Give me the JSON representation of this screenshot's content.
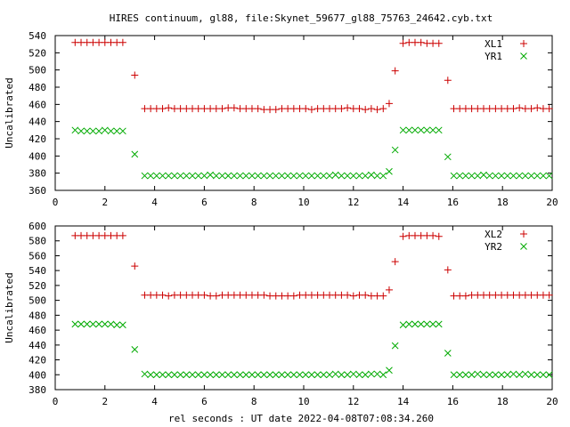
{
  "title": "HIRES continuum, gl88, file:Skynet_59677_gl88_75763_24642.cyb.txt",
  "xlabel": "rel seconds : UT date 2022-04-08T07:08:34.260",
  "colors": {
    "red": "#cc0000",
    "green": "#00aa00",
    "axis": "#000000"
  },
  "chart_data": [
    {
      "type": "scatter",
      "ylabel": "Uncalibrated",
      "xlim": [
        0,
        20
      ],
      "ylim": [
        360,
        540
      ],
      "xticks": [
        0,
        2,
        4,
        6,
        8,
        10,
        12,
        14,
        16,
        18,
        20
      ],
      "yticks": [
        360,
        380,
        400,
        420,
        440,
        460,
        480,
        500,
        520,
        540
      ],
      "grid": false,
      "legend_position": "top-right",
      "series": [
        {
          "name": "XL1",
          "marker": "plus",
          "color": "#cc0000",
          "x": [
            0.8,
            1.04,
            1.28,
            1.52,
            1.76,
            2.0,
            2.24,
            2.48,
            2.72,
            3.2,
            3.6,
            3.84,
            4.08,
            4.32,
            4.56,
            4.8,
            5.04,
            5.28,
            5.52,
            5.76,
            6.0,
            6.24,
            6.48,
            6.72,
            6.96,
            7.2,
            7.44,
            7.68,
            7.92,
            8.16,
            8.4,
            8.64,
            8.88,
            9.12,
            9.36,
            9.6,
            9.84,
            10.08,
            10.32,
            10.56,
            10.8,
            11.04,
            11.28,
            11.52,
            11.76,
            12.0,
            12.24,
            12.48,
            12.72,
            12.96,
            13.2,
            13.44,
            13.68,
            14.0,
            14.24,
            14.48,
            14.72,
            14.96,
            15.2,
            15.44,
            15.8,
            16.04,
            16.28,
            16.52,
            16.76,
            17.0,
            17.24,
            17.48,
            17.72,
            17.96,
            18.2,
            18.44,
            18.68,
            18.92,
            19.16,
            19.4,
            19.64,
            19.88
          ],
          "y": [
            532,
            532,
            532,
            532,
            532,
            532,
            532,
            532,
            532,
            494,
            455,
            455,
            455,
            455,
            456,
            455,
            455,
            455,
            455,
            455,
            455,
            455,
            455,
            455,
            456,
            456,
            455,
            455,
            455,
            455,
            454,
            454,
            454,
            455,
            455,
            455,
            455,
            455,
            454,
            455,
            455,
            455,
            455,
            455,
            456,
            455,
            455,
            454,
            455,
            454,
            455,
            461,
            499,
            531,
            532,
            532,
            532,
            531,
            531,
            531,
            488,
            455,
            455,
            455,
            455,
            455,
            455,
            455,
            455,
            455,
            455,
            455,
            456,
            455,
            455,
            456,
            455,
            455
          ]
        },
        {
          "name": "YR1",
          "marker": "cross",
          "color": "#00aa00",
          "x": [
            0.8,
            1.04,
            1.28,
            1.52,
            1.76,
            2.0,
            2.24,
            2.48,
            2.72,
            3.2,
            3.6,
            3.84,
            4.08,
            4.32,
            4.56,
            4.8,
            5.04,
            5.28,
            5.52,
            5.76,
            6.0,
            6.24,
            6.48,
            6.72,
            6.96,
            7.2,
            7.44,
            7.68,
            7.92,
            8.16,
            8.4,
            8.64,
            8.88,
            9.12,
            9.36,
            9.6,
            9.84,
            10.08,
            10.32,
            10.56,
            10.8,
            11.04,
            11.28,
            11.52,
            11.76,
            12.0,
            12.24,
            12.48,
            12.72,
            12.96,
            13.2,
            13.44,
            13.68,
            14.0,
            14.24,
            14.48,
            14.72,
            14.96,
            15.2,
            15.44,
            15.8,
            16.04,
            16.28,
            16.52,
            16.76,
            17.0,
            17.24,
            17.48,
            17.72,
            17.96,
            18.2,
            18.44,
            18.68,
            18.92,
            19.16,
            19.4,
            19.64,
            19.88
          ],
          "y": [
            430,
            429,
            429,
            429,
            429,
            430,
            429,
            429,
            429,
            402,
            377,
            377,
            377,
            377,
            377,
            377,
            377,
            377,
            377,
            377,
            377,
            378,
            377,
            377,
            377,
            377,
            377,
            377,
            377,
            377,
            377,
            377,
            377,
            377,
            377,
            377,
            377,
            377,
            377,
            377,
            377,
            377,
            378,
            377,
            377,
            377,
            377,
            377,
            378,
            377,
            377,
            382,
            407,
            430,
            430,
            430,
            430,
            430,
            430,
            430,
            399,
            377,
            377,
            377,
            377,
            377,
            378,
            377,
            377,
            377,
            377,
            377,
            377,
            377,
            377,
            377,
            377,
            377
          ]
        }
      ]
    },
    {
      "type": "scatter",
      "ylabel": "Uncalibrated",
      "xlim": [
        0,
        20
      ],
      "ylim": [
        380,
        600
      ],
      "xticks": [
        0,
        2,
        4,
        6,
        8,
        10,
        12,
        14,
        16,
        18,
        20
      ],
      "yticks": [
        380,
        400,
        420,
        440,
        460,
        480,
        500,
        520,
        540,
        560,
        580,
        600
      ],
      "grid": false,
      "legend_position": "top-right",
      "series": [
        {
          "name": "XL2",
          "marker": "plus",
          "color": "#cc0000",
          "x": [
            0.8,
            1.04,
            1.28,
            1.52,
            1.76,
            2.0,
            2.24,
            2.48,
            2.72,
            3.2,
            3.6,
            3.84,
            4.08,
            4.32,
            4.56,
            4.8,
            5.04,
            5.28,
            5.52,
            5.76,
            6.0,
            6.24,
            6.48,
            6.72,
            6.96,
            7.2,
            7.44,
            7.68,
            7.92,
            8.16,
            8.4,
            8.64,
            8.88,
            9.12,
            9.36,
            9.6,
            9.84,
            10.08,
            10.32,
            10.56,
            10.8,
            11.04,
            11.28,
            11.52,
            11.76,
            12.0,
            12.24,
            12.48,
            12.72,
            12.96,
            13.2,
            13.44,
            13.68,
            14.0,
            14.24,
            14.48,
            14.72,
            14.96,
            15.2,
            15.44,
            15.8,
            16.04,
            16.28,
            16.52,
            16.76,
            17.0,
            17.24,
            17.48,
            17.72,
            17.96,
            18.2,
            18.44,
            18.68,
            18.92,
            19.16,
            19.4,
            19.64,
            19.88
          ],
          "y": [
            587,
            587,
            587,
            587,
            587,
            587,
            587,
            587,
            587,
            546,
            507,
            507,
            507,
            507,
            506,
            507,
            507,
            507,
            507,
            507,
            507,
            506,
            506,
            507,
            507,
            507,
            507,
            507,
            507,
            507,
            507,
            506,
            506,
            506,
            506,
            506,
            507,
            507,
            507,
            507,
            507,
            507,
            507,
            507,
            507,
            506,
            507,
            507,
            506,
            506,
            506,
            514,
            552,
            586,
            587,
            587,
            587,
            587,
            587,
            586,
            541,
            506,
            506,
            506,
            507,
            507,
            507,
            507,
            507,
            507,
            507,
            507,
            507,
            507,
            507,
            507,
            507,
            507
          ]
        },
        {
          "name": "YR2",
          "marker": "cross",
          "color": "#00aa00",
          "x": [
            0.8,
            1.04,
            1.28,
            1.52,
            1.76,
            2.0,
            2.24,
            2.48,
            2.72,
            3.2,
            3.6,
            3.84,
            4.08,
            4.32,
            4.56,
            4.8,
            5.04,
            5.28,
            5.52,
            5.76,
            6.0,
            6.24,
            6.48,
            6.72,
            6.96,
            7.2,
            7.44,
            7.68,
            7.92,
            8.16,
            8.4,
            8.64,
            8.88,
            9.12,
            9.36,
            9.6,
            9.84,
            10.08,
            10.32,
            10.56,
            10.8,
            11.04,
            11.28,
            11.52,
            11.76,
            12.0,
            12.24,
            12.48,
            12.72,
            12.96,
            13.2,
            13.44,
            13.68,
            14.0,
            14.24,
            14.48,
            14.72,
            14.96,
            15.2,
            15.44,
            15.8,
            16.04,
            16.28,
            16.52,
            16.76,
            17.0,
            17.24,
            17.48,
            17.72,
            17.96,
            18.2,
            18.44,
            18.68,
            18.92,
            19.16,
            19.4,
            19.64,
            19.88
          ],
          "y": [
            468,
            468,
            468,
            468,
            468,
            468,
            468,
            467,
            467,
            434,
            401,
            400,
            400,
            400,
            400,
            400,
            400,
            400,
            400,
            400,
            400,
            400,
            400,
            400,
            400,
            400,
            400,
            400,
            400,
            400,
            400,
            400,
            400,
            400,
            400,
            400,
            400,
            400,
            400,
            400,
            400,
            400,
            401,
            400,
            400,
            401,
            400,
            400,
            401,
            401,
            400,
            406,
            439,
            467,
            468,
            468,
            468,
            468,
            468,
            468,
            429,
            400,
            400,
            400,
            400,
            401,
            400,
            400,
            400,
            400,
            400,
            401,
            400,
            401,
            400,
            400,
            400,
            400
          ]
        }
      ]
    }
  ]
}
